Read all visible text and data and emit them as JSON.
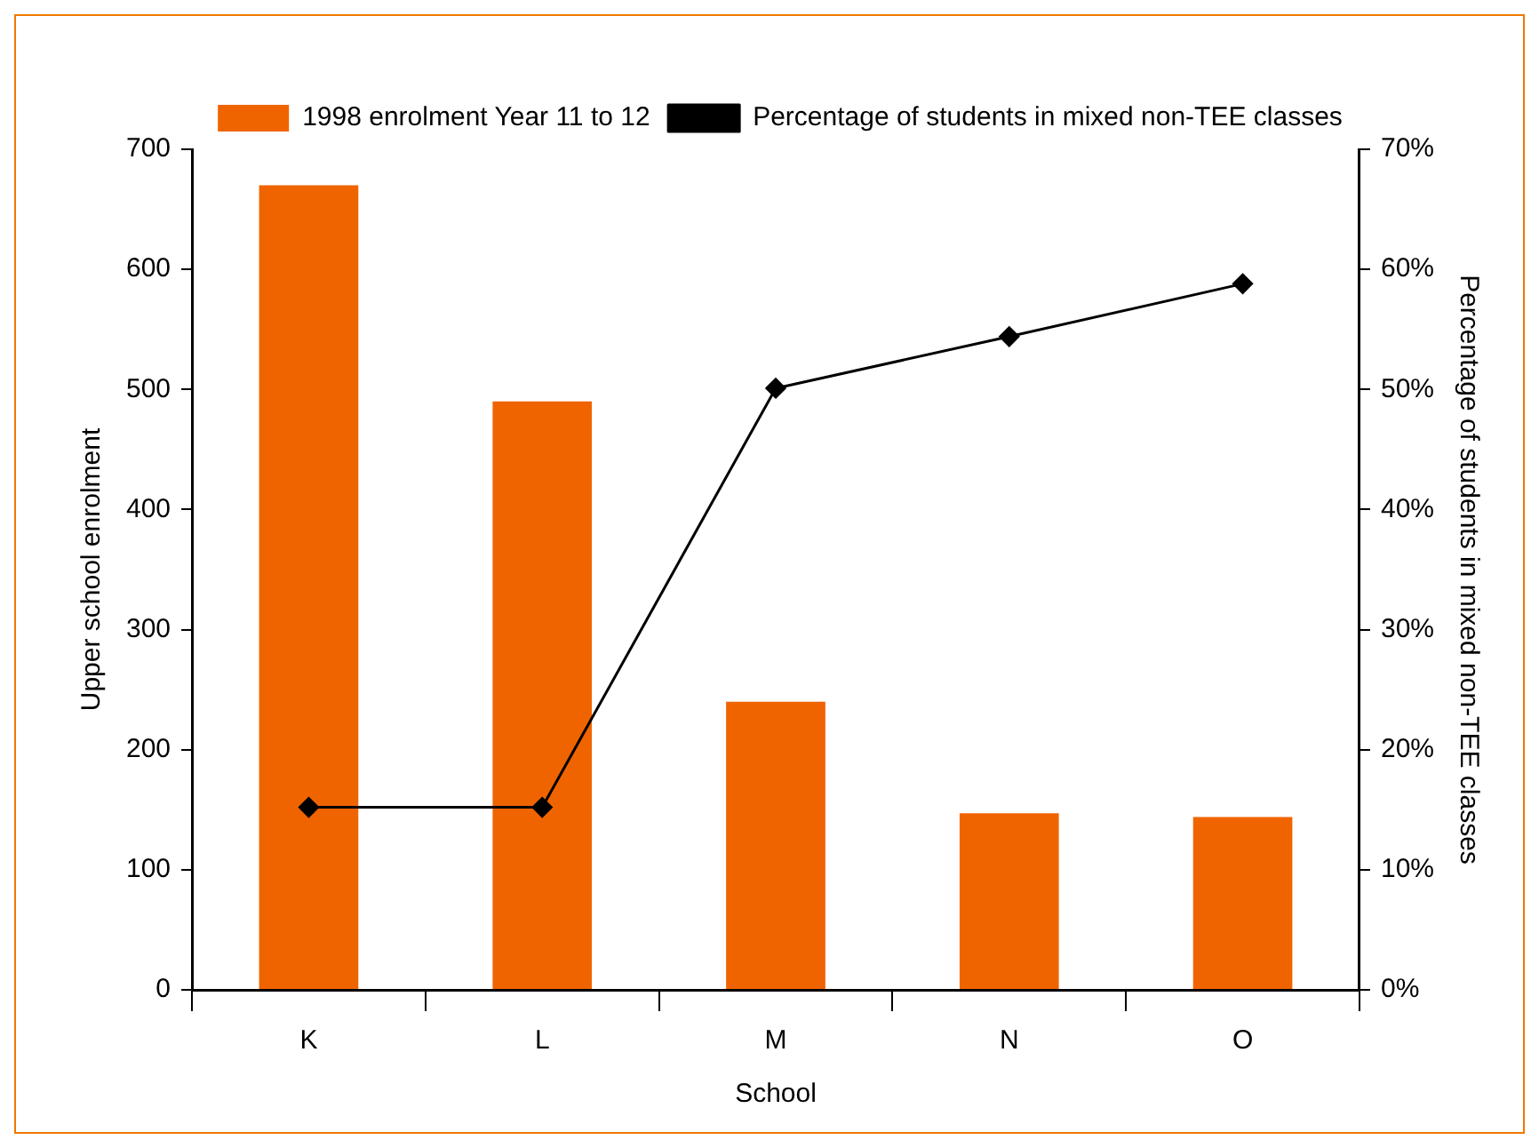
{
  "chart_data": {
    "type": "bar",
    "xlabel": "School",
    "ylabel": "Upper school enrolment",
    "y2label": "Percentage of students in mixed non-TEE classes",
    "categories": [
      "K",
      "L",
      "M",
      "N",
      "O"
    ],
    "series": [
      {
        "name": "1998 enrolment Year 11 to 12",
        "color": "#f06400",
        "values": [
          670,
          490,
          240,
          147,
          144
        ]
      },
      {
        "name": "Percentage of students in mixed non-TEE classes",
        "type": "line",
        "axis": "y2",
        "color": "#000000",
        "marker": "diamond",
        "values": [
          15.2,
          15.2,
          50.1,
          54.4,
          58.8
        ]
      }
    ],
    "ylim": [
      0,
      700
    ],
    "yticks": [
      0,
      100,
      200,
      300,
      400,
      500,
      600,
      700
    ],
    "y2lim": [
      0,
      70
    ],
    "y2ticks": [
      {
        "value": 0,
        "label": "0%"
      },
      {
        "value": 10,
        "label": "10%"
      },
      {
        "value": 20,
        "label": "20%"
      },
      {
        "value": 30,
        "label": "30%"
      },
      {
        "value": 40,
        "label": "40%"
      },
      {
        "value": 50,
        "label": "50%"
      },
      {
        "value": 60,
        "label": "60%"
      },
      {
        "value": 70,
        "label": "70%"
      }
    ],
    "grid": false,
    "legend": "top"
  }
}
